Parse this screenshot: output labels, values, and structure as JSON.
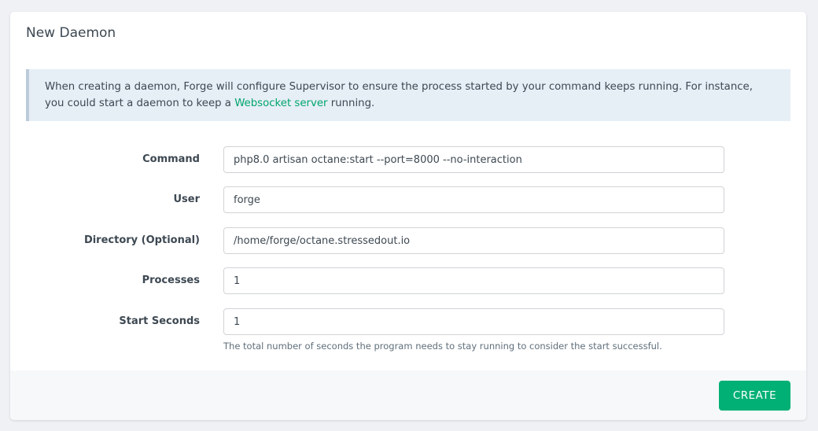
{
  "card": {
    "title": "New Daemon",
    "alert": {
      "text_before": "When creating a daemon, Forge will configure Supervisor to ensure the process started by your command keeps running. For instance, you could start a daemon to keep a ",
      "link": "Websocket server",
      "text_after": " running."
    },
    "fields": [
      {
        "label": "Command",
        "value": "php8.0 artisan octane:start --port=8000 --no-interaction"
      },
      {
        "label": "User",
        "value": "forge"
      },
      {
        "label": "Directory (Optional)",
        "value": "/home/forge/octane.stressedout.io"
      },
      {
        "label": "Processes",
        "value": "1"
      },
      {
        "label": "Start Seconds",
        "value": "1"
      }
    ],
    "start_seconds_help": "The total number of seconds the program needs to stay running to consider the start successful.",
    "create_label": "CREATE"
  },
  "colors": {
    "accent": "#00b074",
    "link": "#00a56c",
    "alert_bg": "#e6eef6"
  }
}
